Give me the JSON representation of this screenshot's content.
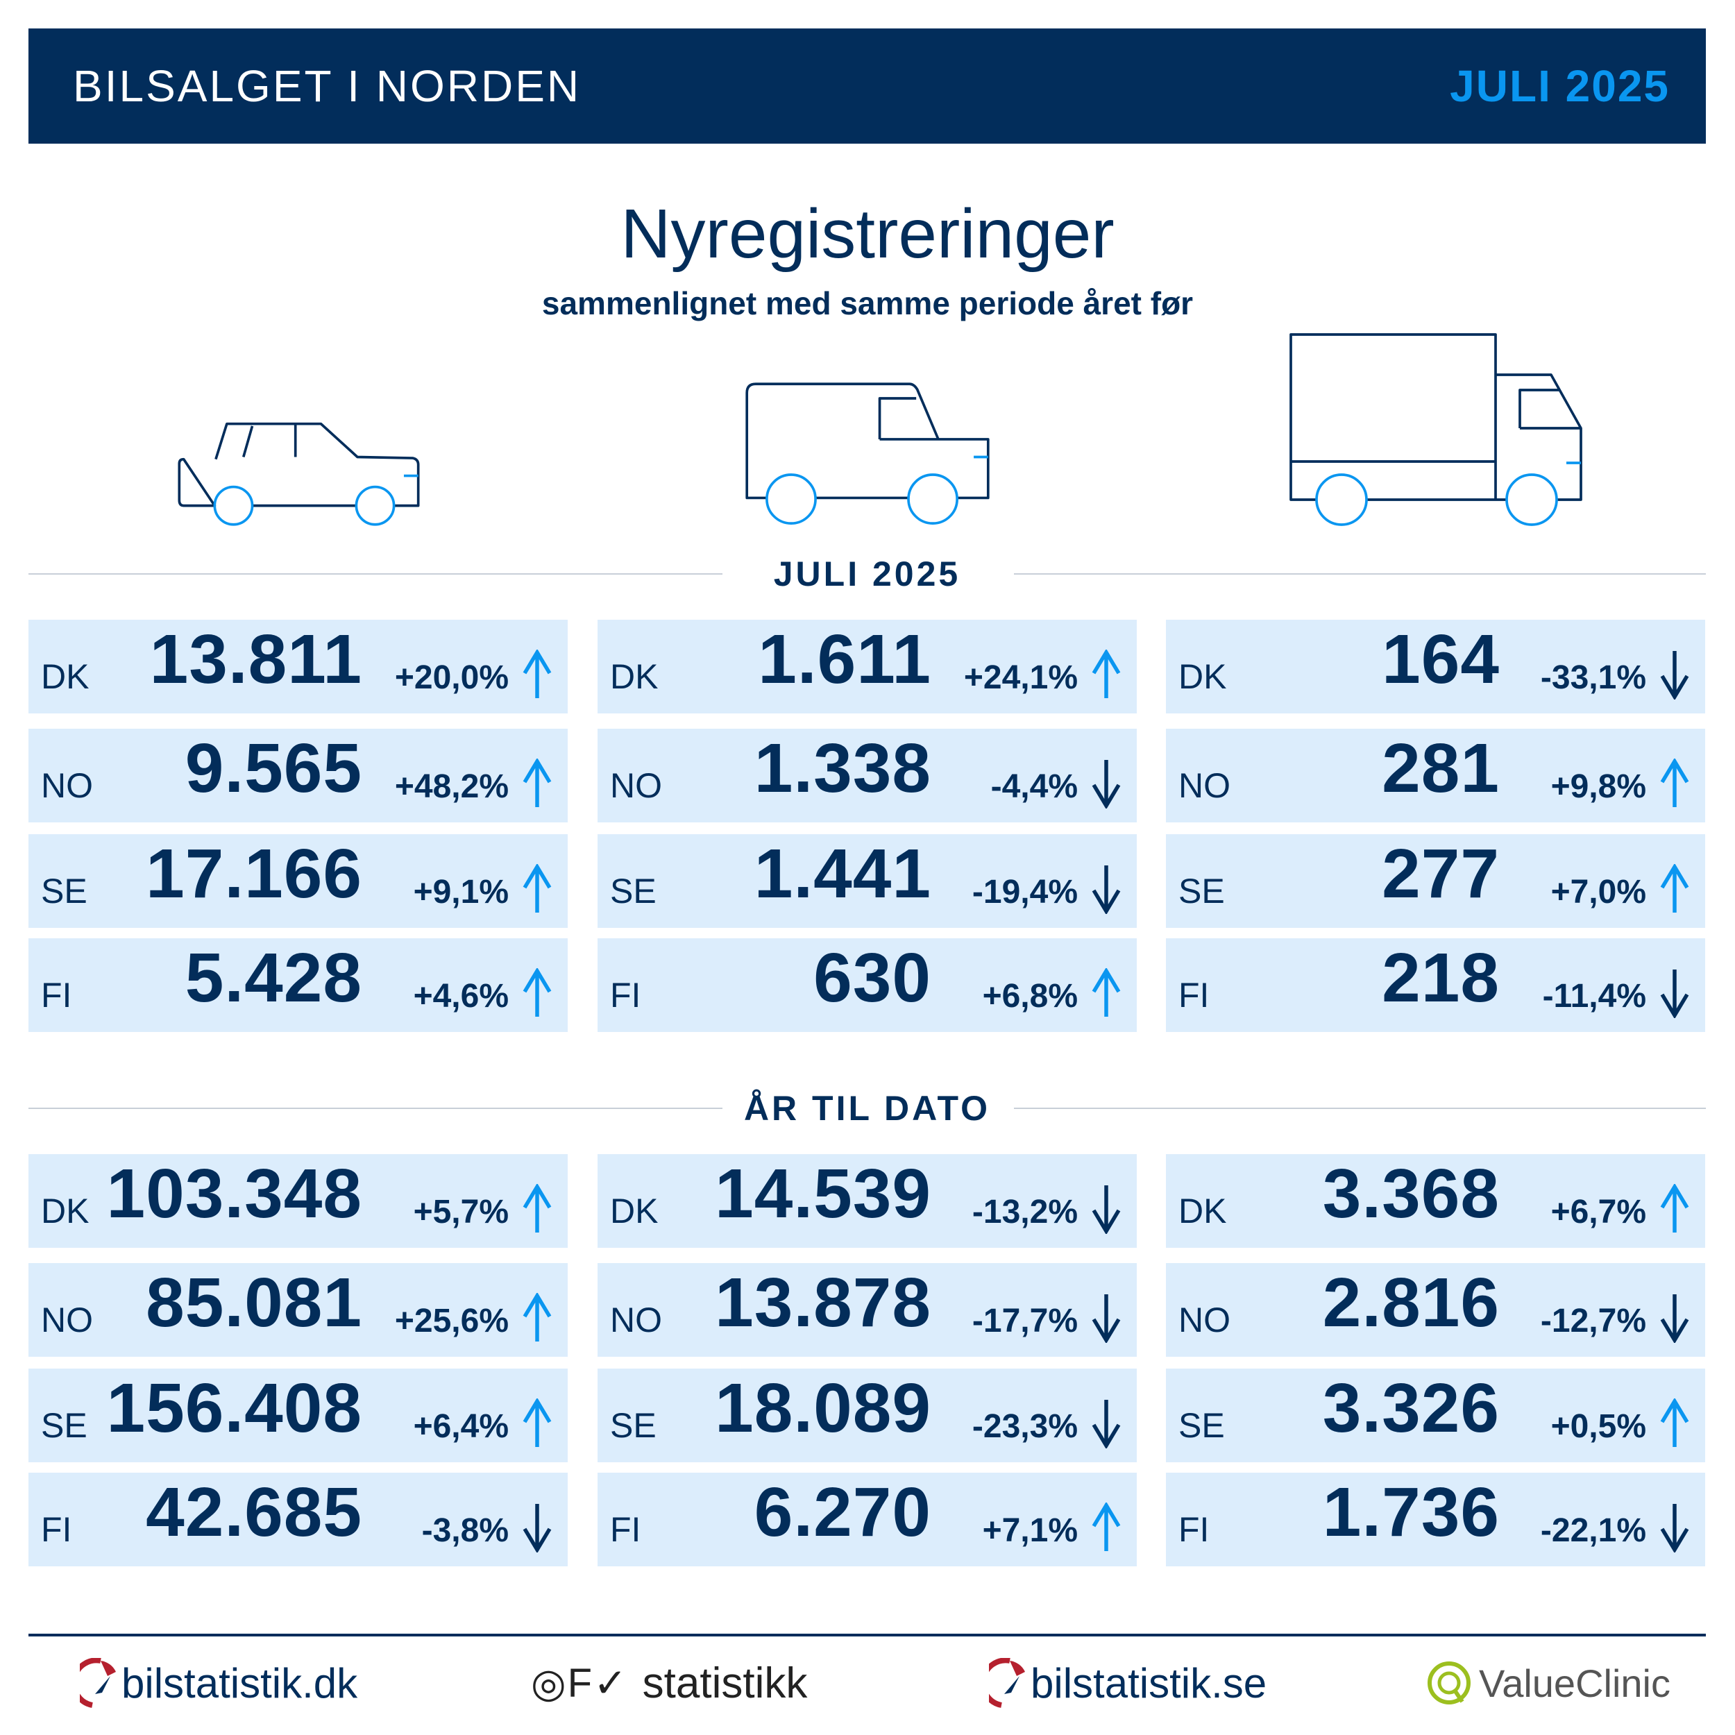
{
  "header": {
    "title": "BILSALGET I NORDEN",
    "period": "JULI 2025"
  },
  "title": "Nyregistreringer",
  "subtitle": "sammenlignet med samme periode året før",
  "vehicle_icons": [
    "car-icon",
    "van-icon",
    "truck-icon"
  ],
  "colors": {
    "navy": "#022d5b",
    "accent": "#0a96f0",
    "cell": "#dcedfc"
  },
  "sections": [
    {
      "label": "JULI 2025",
      "columns": [
        [
          {
            "cc": "DK",
            "value": "13.811",
            "pct": "+20,0%",
            "dir": "up"
          },
          {
            "cc": "NO",
            "value": "9.565",
            "pct": "+48,2%",
            "dir": "up"
          },
          {
            "cc": "SE",
            "value": "17.166",
            "pct": "+9,1%",
            "dir": "up"
          },
          {
            "cc": "FI",
            "value": "5.428",
            "pct": "+4,6%",
            "dir": "up"
          }
        ],
        [
          {
            "cc": "DK",
            "value": "1.611",
            "pct": "+24,1%",
            "dir": "up"
          },
          {
            "cc": "NO",
            "value": "1.338",
            "pct": "-4,4%",
            "dir": "down"
          },
          {
            "cc": "SE",
            "value": "1.441",
            "pct": "-19,4%",
            "dir": "down"
          },
          {
            "cc": "FI",
            "value": "630",
            "pct": "+6,8%",
            "dir": "up"
          }
        ],
        [
          {
            "cc": "DK",
            "value": "164",
            "pct": "-33,1%",
            "dir": "down"
          },
          {
            "cc": "NO",
            "value": "281",
            "pct": "+9,8%",
            "dir": "up"
          },
          {
            "cc": "SE",
            "value": "277",
            "pct": "+7,0%",
            "dir": "up"
          },
          {
            "cc": "FI",
            "value": "218",
            "pct": "-11,4%",
            "dir": "down"
          }
        ]
      ]
    },
    {
      "label": "ÅR TIL DATO",
      "columns": [
        [
          {
            "cc": "DK",
            "value": "103.348",
            "pct": "+5,7%",
            "dir": "up"
          },
          {
            "cc": "NO",
            "value": "85.081",
            "pct": "+25,6%",
            "dir": "up"
          },
          {
            "cc": "SE",
            "value": "156.408",
            "pct": "+6,4%",
            "dir": "up"
          },
          {
            "cc": "FI",
            "value": "42.685",
            "pct": "-3,8%",
            "dir": "down"
          }
        ],
        [
          {
            "cc": "DK",
            "value": "14.539",
            "pct": "-13,2%",
            "dir": "down"
          },
          {
            "cc": "NO",
            "value": "13.878",
            "pct": "-17,7%",
            "dir": "down"
          },
          {
            "cc": "SE",
            "value": "18.089",
            "pct": "-23,3%",
            "dir": "down"
          },
          {
            "cc": "FI",
            "value": "6.270",
            "pct": "+7,1%",
            "dir": "up"
          }
        ],
        [
          {
            "cc": "DK",
            "value": "3.368",
            "pct": "+6,7%",
            "dir": "up"
          },
          {
            "cc": "NO",
            "value": "2.816",
            "pct": "-12,7%",
            "dir": "down"
          },
          {
            "cc": "SE",
            "value": "3.326",
            "pct": "+0,5%",
            "dir": "up"
          },
          {
            "cc": "FI",
            "value": "1.736",
            "pct": "-22,1%",
            "dir": "down"
          }
        ]
      ]
    }
  ],
  "footer": {
    "logos": [
      "bilstatistik.dk",
      "OFV statistikk",
      "bilstatistik.se",
      "ValueClinic"
    ],
    "ofv_text": "statistikk",
    "vc_text": "ValueClinic"
  }
}
